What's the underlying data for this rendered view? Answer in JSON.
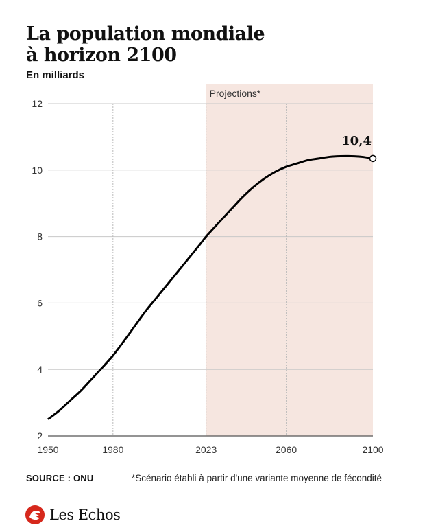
{
  "header": {
    "title_line1": "La population mondiale",
    "title_line2": "à horizon 2100"
  },
  "chart_data": {
    "type": "line",
    "title": "La population mondiale à horizon 2100",
    "subtitle": "En milliards",
    "xlabel": "",
    "ylabel": "",
    "xlim": [
      1950,
      2100
    ],
    "ylim": [
      2,
      12
    ],
    "y_ticks": [
      2,
      4,
      6,
      8,
      10,
      12
    ],
    "x_ticks": [
      1950,
      1980,
      2023,
      2060,
      2100
    ],
    "grid": true,
    "projection_region": {
      "from": 2023,
      "to": 2100,
      "label": "Projections*",
      "color": "#f6e6e0"
    },
    "end_label": "10,4",
    "series": [
      {
        "color": "#000000",
        "x": [
          1950,
          1955,
          1960,
          1965,
          1970,
          1975,
          1980,
          1985,
          1990,
          1995,
          2000,
          2005,
          2010,
          2015,
          2020,
          2023,
          2030,
          2035,
          2040,
          2045,
          2050,
          2055,
          2060,
          2065,
          2070,
          2075,
          2080,
          2085,
          2090,
          2095,
          2100
        ],
        "values": [
          2.5,
          2.75,
          3.05,
          3.35,
          3.7,
          4.05,
          4.42,
          4.85,
          5.3,
          5.75,
          6.15,
          6.55,
          6.95,
          7.35,
          7.75,
          8.0,
          8.5,
          8.85,
          9.2,
          9.5,
          9.75,
          9.95,
          10.1,
          10.2,
          10.3,
          10.35,
          10.4,
          10.42,
          10.42,
          10.4,
          10.35
        ]
      }
    ]
  },
  "footer": {
    "source": "SOURCE : ONU",
    "footnote": "*Scénario établi à partir d'une variante moyenne de fécondité",
    "logo": "Les Echos"
  }
}
